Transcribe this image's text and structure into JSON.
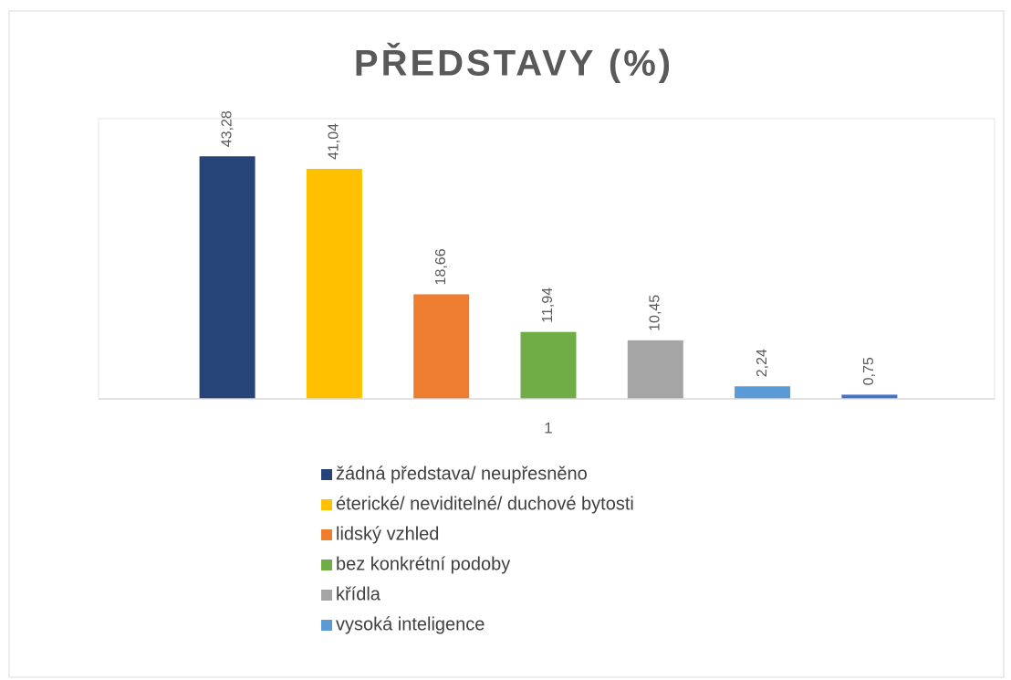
{
  "chart_data": {
    "type": "bar",
    "title": "PŘEDSTAVY (%)",
    "categories": [
      "1"
    ],
    "ylim": [
      0,
      50
    ],
    "series": [
      {
        "name": "žádná představa/ neupřesněno",
        "color": "#264478",
        "values": [
          43.28
        ],
        "value_labels": [
          "43,28"
        ]
      },
      {
        "name": "éterické/ neviditelné/ duchové bytosti",
        "color": "#FFC000",
        "values": [
          41.04
        ],
        "value_labels": [
          "41,04"
        ]
      },
      {
        "name": "lidský vzhled",
        "color": "#ED7D31",
        "values": [
          18.66
        ],
        "value_labels": [
          "18,66"
        ]
      },
      {
        "name": "bez konkrétní podoby",
        "color": "#70AD47",
        "values": [
          11.94
        ],
        "value_labels": [
          "11,94"
        ]
      },
      {
        "name": "křídla",
        "color": "#A5A5A5",
        "values": [
          10.45
        ],
        "value_labels": [
          "10,45"
        ]
      },
      {
        "name": "vysoká inteligence",
        "color": "#5B9BD5",
        "values": [
          2.24
        ],
        "value_labels": [
          "2,24"
        ]
      },
      {
        "color": "#4472C4",
        "values": [
          0.75
        ],
        "value_labels": [
          "0,75"
        ]
      }
    ]
  }
}
